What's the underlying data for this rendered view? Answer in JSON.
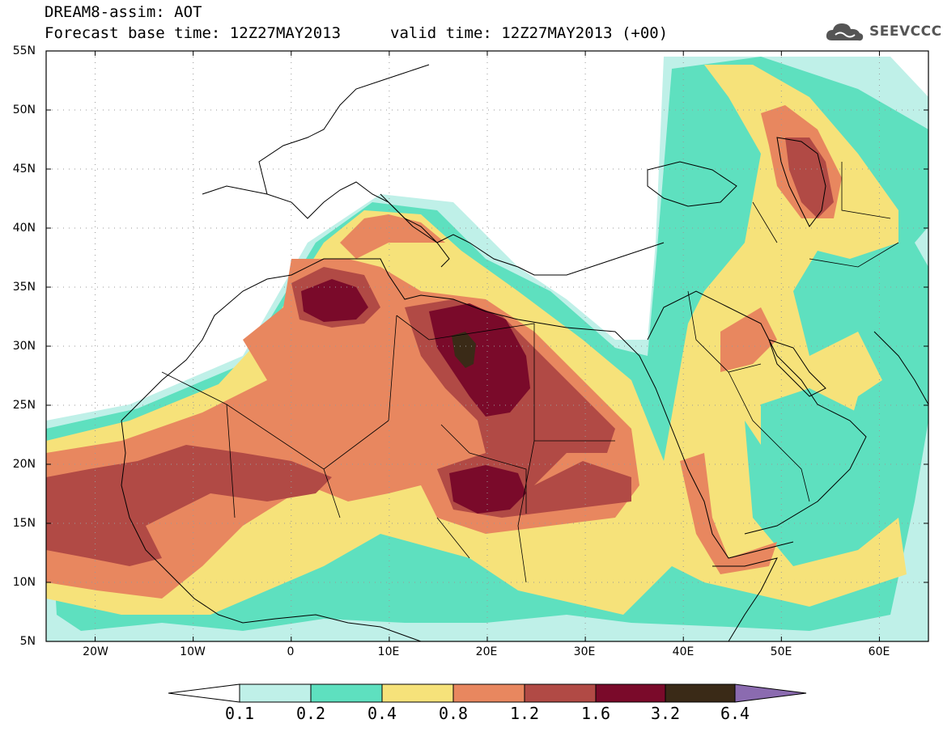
{
  "header": {
    "title_line1": "DREAM8-assim: AOT",
    "title_line2_base": "Forecast base time: 12Z27MAY2013",
    "title_line2_valid": "valid time: 12Z27MAY2013 (+00)",
    "logo_text": "SEEVCCC",
    "logo_icon": "cloud-icon"
  },
  "map": {
    "extent": {
      "lon_min": -25,
      "lon_max": 65,
      "lat_min": 5,
      "lat_max": 55
    },
    "lat_labels": [
      "55N",
      "50N",
      "45N",
      "40N",
      "35N",
      "30N",
      "25N",
      "20N",
      "15N",
      "10N",
      "5N"
    ],
    "lon_labels": [
      "20W",
      "10W",
      "0",
      "10E",
      "20E",
      "30E",
      "40E",
      "50E",
      "60E"
    ],
    "grid": true
  },
  "legend": {
    "levels": [
      "0.1",
      "0.2",
      "0.4",
      "0.8",
      "1.2",
      "1.6",
      "3.2",
      "6.4"
    ],
    "colors": {
      "below": "#ffffff",
      "c1": "#bff0e8",
      "c2": "#5ee0bf",
      "c3": "#f6e27a",
      "c4": "#e8875f",
      "c5": "#b14a45",
      "c6": "#7a0a2a",
      "c7": "#3a2a17",
      "above": "#8b6bb0"
    }
  }
}
